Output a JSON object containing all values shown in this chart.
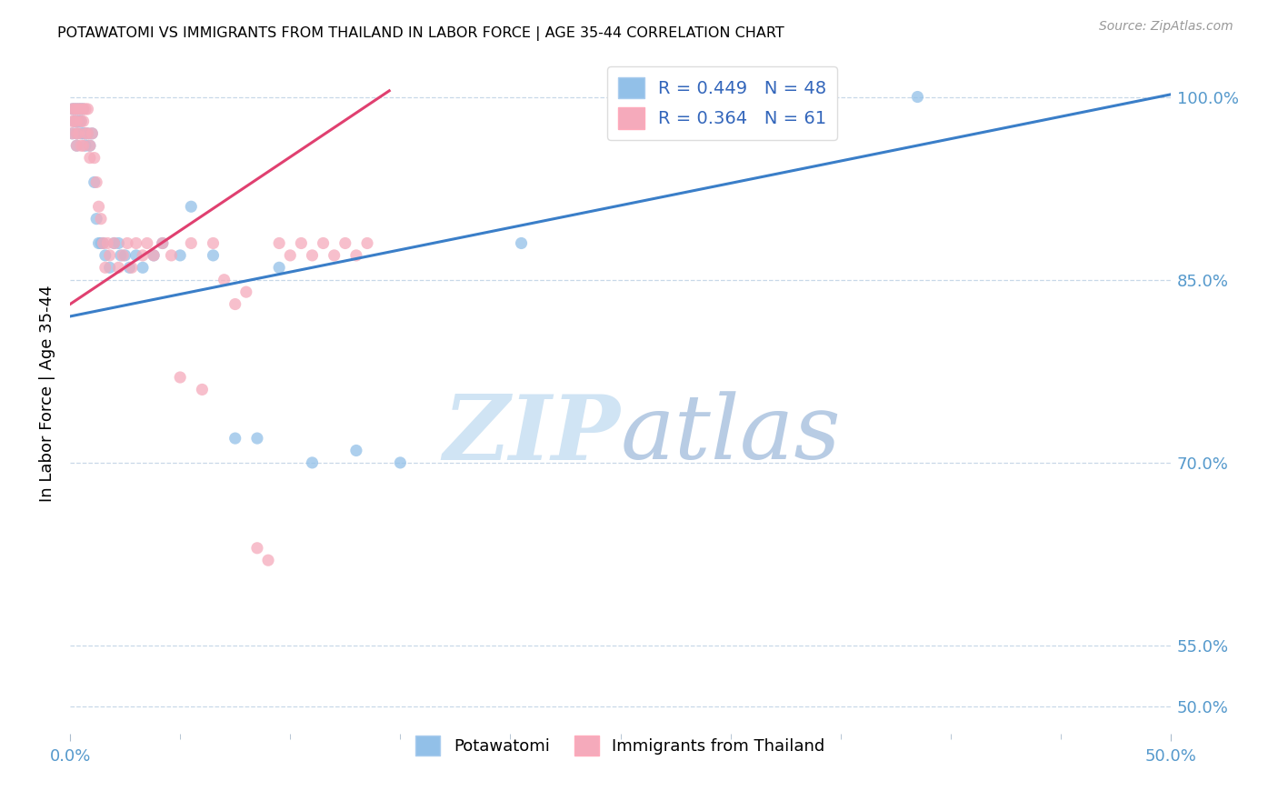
{
  "title": "POTAWATOMI VS IMMIGRANTS FROM THAILAND IN LABOR FORCE | AGE 35-44 CORRELATION CHART",
  "source": "Source: ZipAtlas.com",
  "ylabel": "In Labor Force | Age 35-44",
  "xmin": 0.0,
  "xmax": 0.5,
  "ymin": 0.478,
  "ymax": 1.035,
  "ytick_vals": [
    0.5,
    0.55,
    0.7,
    0.85,
    1.0
  ],
  "ytick_labels": [
    "50.0%",
    "55.0%",
    "70.0%",
    "85.0%",
    "100.0%"
  ],
  "r_blue": 0.449,
  "n_blue": 48,
  "r_pink": 0.364,
  "n_pink": 61,
  "blue_color": "#92C0E8",
  "pink_color": "#F5AABB",
  "blue_line_color": "#3A7EC8",
  "pink_line_color": "#E04070",
  "watermark_color": "#D0E4F4",
  "blue_trend_x0": 0.0,
  "blue_trend_x1": 0.5,
  "blue_trend_y0": 0.82,
  "blue_trend_y1": 1.002,
  "pink_trend_x0": 0.0,
  "pink_trend_x1": 0.145,
  "pink_trend_y0": 0.83,
  "pink_trend_y1": 1.005,
  "blue_pts_x": [
    0.001,
    0.001,
    0.002,
    0.002,
    0.003,
    0.003,
    0.003,
    0.003,
    0.004,
    0.004,
    0.005,
    0.005,
    0.005,
    0.006,
    0.006,
    0.007,
    0.007,
    0.008,
    0.009,
    0.01,
    0.011,
    0.012,
    0.013,
    0.014,
    0.015,
    0.016,
    0.018,
    0.02,
    0.022,
    0.023,
    0.025,
    0.027,
    0.03,
    0.033,
    0.038,
    0.042,
    0.05,
    0.055,
    0.065,
    0.075,
    0.085,
    0.095,
    0.11,
    0.13,
    0.15,
    0.205,
    0.325,
    0.385
  ],
  "blue_pts_y": [
    0.99,
    0.97,
    0.99,
    0.98,
    0.99,
    0.98,
    0.97,
    0.96,
    0.99,
    0.98,
    0.99,
    0.98,
    0.97,
    0.99,
    0.97,
    0.97,
    0.96,
    0.97,
    0.96,
    0.97,
    0.93,
    0.9,
    0.88,
    0.88,
    0.88,
    0.87,
    0.86,
    0.88,
    0.88,
    0.87,
    0.87,
    0.86,
    0.87,
    0.86,
    0.87,
    0.88,
    0.87,
    0.91,
    0.87,
    0.72,
    0.72,
    0.86,
    0.7,
    0.71,
    0.7,
    0.88,
    1.0,
    1.0
  ],
  "pink_pts_x": [
    0.001,
    0.001,
    0.001,
    0.002,
    0.002,
    0.003,
    0.003,
    0.003,
    0.003,
    0.004,
    0.004,
    0.005,
    0.005,
    0.005,
    0.006,
    0.006,
    0.006,
    0.007,
    0.007,
    0.008,
    0.008,
    0.009,
    0.009,
    0.01,
    0.011,
    0.012,
    0.013,
    0.014,
    0.015,
    0.016,
    0.017,
    0.018,
    0.02,
    0.022,
    0.024,
    0.026,
    0.028,
    0.03,
    0.033,
    0.035,
    0.038,
    0.042,
    0.046,
    0.05,
    0.055,
    0.06,
    0.065,
    0.07,
    0.075,
    0.08,
    0.085,
    0.09,
    0.095,
    0.1,
    0.105,
    0.11,
    0.115,
    0.12,
    0.125,
    0.13,
    0.135
  ],
  "pink_pts_y": [
    0.99,
    0.98,
    0.97,
    0.99,
    0.98,
    0.99,
    0.98,
    0.97,
    0.96,
    0.99,
    0.97,
    0.99,
    0.98,
    0.96,
    0.99,
    0.98,
    0.96,
    0.99,
    0.97,
    0.99,
    0.97,
    0.96,
    0.95,
    0.97,
    0.95,
    0.93,
    0.91,
    0.9,
    0.88,
    0.86,
    0.88,
    0.87,
    0.88,
    0.86,
    0.87,
    0.88,
    0.86,
    0.88,
    0.87,
    0.88,
    0.87,
    0.88,
    0.87,
    0.77,
    0.88,
    0.76,
    0.88,
    0.85,
    0.83,
    0.84,
    0.63,
    0.62,
    0.88,
    0.87,
    0.88,
    0.87,
    0.88,
    0.87,
    0.88,
    0.87,
    0.88
  ]
}
